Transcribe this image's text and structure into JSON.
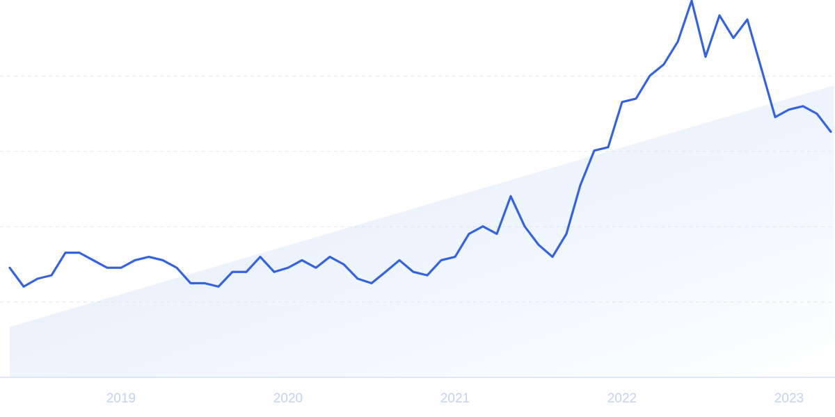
{
  "chart_data": {
    "type": "line",
    "categories": [
      null,
      null,
      null,
      null,
      null,
      null,
      null,
      null,
      "2019",
      null,
      null,
      null,
      null,
      null,
      null,
      null,
      null,
      null,
      null,
      null,
      "2020",
      null,
      null,
      null,
      null,
      null,
      null,
      null,
      null,
      null,
      null,
      null,
      "2021",
      null,
      null,
      null,
      null,
      null,
      null,
      null,
      null,
      null,
      null,
      null,
      "2022",
      null,
      null,
      null,
      null,
      null,
      null,
      null,
      null,
      null,
      null,
      null,
      "2023",
      null,
      null,
      null
    ],
    "series": [
      {
        "color": "#3563e0",
        "values": [
          29.1,
          24.1,
          26.2,
          27.1,
          33.1,
          33.1,
          31.1,
          29.1,
          29.1,
          31.1,
          32.0,
          31.1,
          29.1,
          25.0,
          25.0,
          24.1,
          28.0,
          28.0,
          32.0,
          28.0,
          29.1,
          31.1,
          29.1,
          32.0,
          30.0,
          26.2,
          25.0,
          28.0,
          31.1,
          28.0,
          27.1,
          31.1,
          32.0,
          38.1,
          40.1,
          38.1,
          48.1,
          40.1,
          35.2,
          32.0,
          38.1,
          51.0,
          60.2,
          61.1,
          73.1,
          74.0,
          80.1,
          83.1,
          89.1,
          100,
          85.1,
          96.1,
          90.1,
          95.0,
          82.1,
          69.1,
          71.1,
          72.0,
          70.0,
          65.2
        ]
      }
    ],
    "trend": {
      "color": "#dce9fa",
      "values": [
        13.4,
        77.5
      ]
    },
    "ylim": [
      0,
      100
    ],
    "yticks": [
      20,
      40,
      60,
      80
    ],
    "grid": true
  }
}
